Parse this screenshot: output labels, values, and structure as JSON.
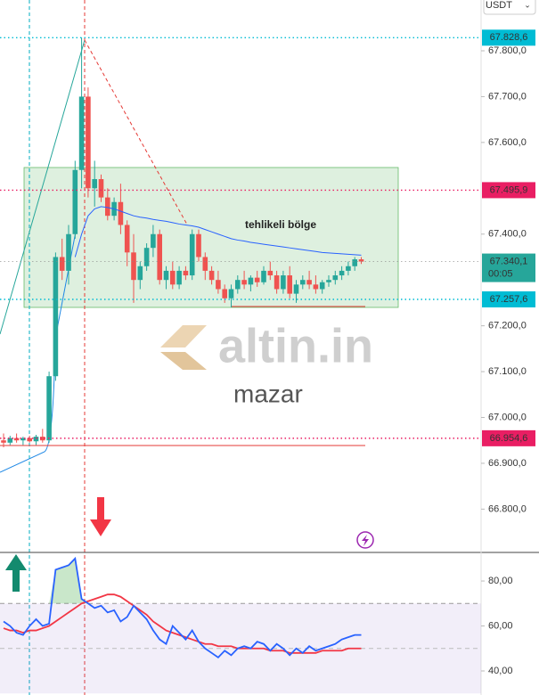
{
  "currency": "USDT",
  "watermark": {
    "brand": "altin.in",
    "author": "mazar"
  },
  "chart_data": [
    {
      "type": "candlestick",
      "annotation": "tehlikeli bölge",
      "open": [
        66950,
        66945,
        66955,
        66950,
        66955,
        66948,
        66958,
        66950,
        67090,
        67350,
        67320,
        67400,
        67540,
        67700,
        67500,
        67520,
        67480,
        67440,
        67470,
        67420,
        67360,
        67300,
        67330,
        67370,
        67400,
        67300,
        67320,
        67290,
        67320,
        67310,
        67400,
        67350,
        67320,
        67300,
        67280,
        67260,
        67280,
        67300,
        67290,
        67305,
        67295,
        67320,
        67310,
        67280,
        67310,
        67270,
        67290,
        67300,
        67290,
        67280,
        67295,
        67300,
        67310,
        67320,
        67330,
        67345
      ],
      "high": [
        66965,
        66960,
        66965,
        66958,
        66960,
        66962,
        66975,
        67100,
        67360,
        67390,
        67420,
        67560,
        67828.6,
        67720,
        67560,
        67530,
        67500,
        67480,
        67510,
        67430,
        67400,
        67340,
        67380,
        67420,
        67410,
        67330,
        67340,
        67330,
        67330,
        67410,
        67410,
        67360,
        67330,
        67320,
        67290,
        67290,
        67310,
        67320,
        67310,
        67320,
        67330,
        67340,
        67320,
        67320,
        67330,
        67300,
        67310,
        67320,
        67310,
        67300,
        67310,
        67320,
        67330,
        67340,
        67350,
        67350
      ],
      "low": [
        66935,
        66940,
        66945,
        66940,
        66945,
        66940,
        66945,
        66945,
        67080,
        67300,
        67290,
        67390,
        67500,
        67480,
        67460,
        67470,
        67430,
        67430,
        67400,
        67330,
        67250,
        67280,
        67320,
        67350,
        67290,
        67280,
        67280,
        67280,
        67300,
        67300,
        67340,
        67300,
        67290,
        67270,
        67250,
        67240,
        67270,
        67280,
        67275,
        67285,
        67290,
        67300,
        67270,
        67270,
        67260,
        67250,
        67280,
        67280,
        67270,
        67270,
        67285,
        67290,
        67300,
        67310,
        67320,
        67335
      ],
      "close": [
        66945,
        66955,
        66950,
        66955,
        66948,
        66958,
        66950,
        67090,
        67350,
        67320,
        67400,
        67540,
        67700,
        67500,
        67520,
        67480,
        67440,
        67470,
        67420,
        67360,
        67300,
        67330,
        67370,
        67400,
        67300,
        67320,
        67290,
        67320,
        67310,
        67400,
        67350,
        67320,
        67300,
        67280,
        67260,
        67280,
        67300,
        67290,
        67305,
        67295,
        67320,
        67310,
        67280,
        67310,
        67270,
        67290,
        67300,
        67290,
        67280,
        67295,
        67300,
        67310,
        67320,
        67330,
        67345,
        67340.1
      ],
      "up_color": "#26a69a",
      "down_color": "#ef5350",
      "series": [
        {
          "color": "#2962ff",
          "values": [
            null,
            null,
            null,
            null,
            null,
            null,
            null,
            null,
            null,
            null,
            null,
            67350,
            67400,
            67440,
            67455,
            67460,
            67458,
            67455,
            67450,
            67445,
            67440,
            67437,
            67435,
            67432,
            67430,
            67428,
            67425,
            67422,
            67420,
            67418,
            67415,
            67410,
            67405,
            67400,
            67395,
            67390,
            67387,
            67385,
            67382,
            67380,
            67378,
            67376,
            67374,
            67372,
            67370,
            67368,
            67366,
            67364,
            67362,
            67360,
            67359,
            67358,
            67357,
            67356,
            67355,
            67354
          ]
        }
      ],
      "ylim": [
        66705.5,
        67910.8
      ],
      "yticks": [
        {
          "value": 67800,
          "label": "67.800,0"
        },
        {
          "value": 67700,
          "label": "67.700,0"
        },
        {
          "value": 67600,
          "label": "67.600,0"
        },
        {
          "value": 67400,
          "label": "67.400,0"
        },
        {
          "value": 67200,
          "label": "67.200,0"
        },
        {
          "value": 67100,
          "label": "67.100,0"
        },
        {
          "value": 67000,
          "label": "67.000,0"
        },
        {
          "value": 66900,
          "label": "66.900,0"
        },
        {
          "value": 66800,
          "label": "66.800,0"
        }
      ],
      "price_lines": [
        {
          "value": 67828.6,
          "label": "67.828,6",
          "color": "#00bcd4"
        },
        {
          "value": 67495.9,
          "label": "67.495,9",
          "color": "#e91e63"
        },
        {
          "value": 67340.1,
          "label": "67.340,1",
          "sublabel": "00:05",
          "color": "#26a69a"
        },
        {
          "value": 67257.6,
          "label": "67.257,6",
          "color": "#00bcd4"
        },
        {
          "value": 66954.6,
          "label": "66.954,6",
          "color": "#e91e63"
        }
      ]
    },
    {
      "type": "line",
      "series": [
        {
          "color": "#2962ff",
          "values": [
            62,
            60,
            57,
            56,
            60,
            63,
            60,
            61,
            85,
            86,
            87,
            90,
            72,
            70,
            68,
            69,
            66,
            67,
            62,
            64,
            69,
            66,
            63,
            58,
            54,
            52,
            60,
            57,
            54,
            58,
            53,
            50,
            48,
            46,
            49,
            47,
            50,
            51,
            50,
            53,
            52,
            49,
            52,
            50,
            47,
            50,
            48,
            51,
            49,
            50,
            51,
            52,
            54,
            55,
            56,
            56
          ]
        },
        {
          "color": "#f23645",
          "values": [
            59,
            58,
            58,
            57,
            58,
            58,
            59,
            60,
            62,
            64,
            66,
            68,
            70,
            71,
            72,
            73,
            74,
            74,
            73,
            71,
            69,
            67,
            65,
            62,
            60,
            58,
            57,
            56,
            55,
            54,
            53,
            52,
            52,
            51,
            51,
            51,
            50,
            50,
            50,
            50,
            50,
            49,
            49,
            49,
            48,
            48,
            48,
            48,
            48,
            49,
            49,
            49,
            49,
            50,
            50,
            50
          ]
        }
      ],
      "band": [
        30,
        70
      ],
      "band_color": "#7e57c2",
      "midline": 50,
      "ylim": [
        29.3,
        92.7
      ],
      "yticks": [
        {
          "value": 80,
          "label": "80,00"
        },
        {
          "value": 60,
          "label": "60,00"
        },
        {
          "value": 40,
          "label": "40,00"
        }
      ]
    }
  ]
}
